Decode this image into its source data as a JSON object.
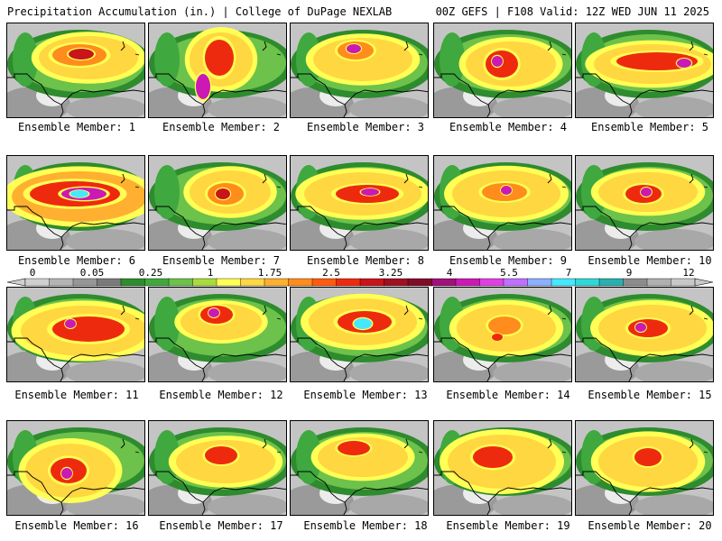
{
  "header": {
    "left": "Precipitation Accumulation (in.) | College of DuPage NEXLAB",
    "right": "00Z GEFS | F108 Valid: 12Z WED JUN 11 2025"
  },
  "members": [
    {
      "label": "Ensemble Member: 1"
    },
    {
      "label": "Ensemble Member: 2"
    },
    {
      "label": "Ensemble Member: 3"
    },
    {
      "label": "Ensemble Member: 4"
    },
    {
      "label": "Ensemble Member: 5"
    },
    {
      "label": "Ensemble Member: 6"
    },
    {
      "label": "Ensemble Member: 7"
    },
    {
      "label": "Ensemble Member: 8"
    },
    {
      "label": "Ensemble Member: 9"
    },
    {
      "label": "Ensemble Member: 10"
    },
    {
      "label": "Ensemble Member: 11"
    },
    {
      "label": "Ensemble Member: 12"
    },
    {
      "label": "Ensemble Member: 13"
    },
    {
      "label": "Ensemble Member: 14"
    },
    {
      "label": "Ensemble Member: 15"
    },
    {
      "label": "Ensemble Member: 16"
    },
    {
      "label": "Ensemble Member: 17"
    },
    {
      "label": "Ensemble Member: 18"
    },
    {
      "label": "Ensemble Member: 19"
    },
    {
      "label": "Ensemble Member: 20"
    }
  ],
  "colorbar": {
    "tick_labels": [
      "0",
      "0.05",
      "0.25",
      "1",
      "1.75",
      "2.5",
      "3.25",
      "4",
      "5.5",
      "7",
      "9",
      "12"
    ],
    "colors": [
      "#cfcfcf",
      "#b4b4b4",
      "#969696",
      "#7a7a7a",
      "#2e8b2e",
      "#3fa83f",
      "#6cc24a",
      "#a8dc3c",
      "#ffff55",
      "#ffd740",
      "#ffb030",
      "#ff8c1c",
      "#ff5a10",
      "#ee2a0e",
      "#c8141a",
      "#a01020",
      "#800c28",
      "#a0107a",
      "#cc18b4",
      "#e040e0",
      "#c070ff",
      "#8cb0ff",
      "#44e8ff",
      "#30d8d8",
      "#28b0b0",
      "#8c8c8c",
      "#b0b0b0",
      "#c8c8c8"
    ]
  }
}
